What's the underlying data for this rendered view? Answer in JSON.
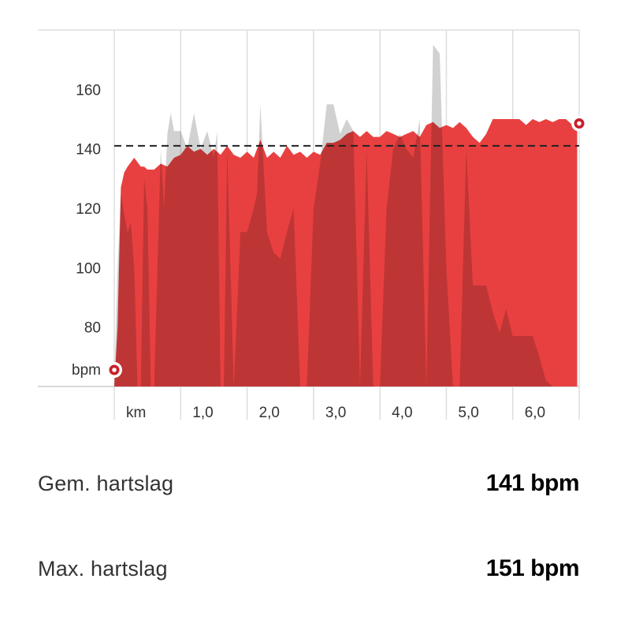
{
  "chart_data": {
    "type": "area",
    "xlabel": "km",
    "ylabel": "bpm",
    "xlim": [
      0,
      7.0
    ],
    "ylim": [
      60,
      180
    ],
    "x_ticks": [
      1,
      2,
      3,
      4,
      5,
      6
    ],
    "x_tick_labels": [
      "1,0",
      "2,0",
      "3,0",
      "4,0",
      "5,0",
      "6,0"
    ],
    "y_ticks": [
      80,
      100,
      120,
      140,
      160
    ],
    "y_tick_labels": [
      "80",
      "100",
      "120",
      "140",
      "160"
    ],
    "grid": "vertical",
    "average_line": 141,
    "series": [
      {
        "role": "heart-rate",
        "color": "#e84040",
        "x": [
          0,
          0.05,
          0.1,
          0.15,
          0.2,
          0.3,
          0.4,
          0.45,
          0.5,
          0.6,
          0.7,
          0.8,
          0.9,
          1.0,
          1.1,
          1.2,
          1.3,
          1.4,
          1.5,
          1.6,
          1.7,
          1.8,
          1.9,
          2.0,
          2.1,
          2.2,
          2.3,
          2.4,
          2.5,
          2.6,
          2.7,
          2.8,
          2.9,
          3.0,
          3.1,
          3.2,
          3.3,
          3.4,
          3.5,
          3.6,
          3.7,
          3.8,
          3.9,
          4.0,
          4.1,
          4.2,
          4.3,
          4.4,
          4.5,
          4.6,
          4.7,
          4.8,
          4.9,
          5.0,
          5.1,
          5.2,
          5.3,
          5.4,
          5.5,
          5.6,
          5.7,
          5.8,
          5.9,
          6.0,
          6.1,
          6.2,
          6.3,
          6.4,
          6.5,
          6.6,
          6.7,
          6.8,
          6.9,
          6.97
        ],
        "values": [
          60,
          80,
          127,
          132,
          134,
          137,
          134,
          134,
          133,
          133,
          135,
          134,
          137,
          138,
          141,
          139,
          140,
          138,
          140,
          138,
          141,
          138,
          137,
          139,
          137,
          143,
          137,
          139,
          137,
          141,
          138,
          139,
          137,
          139,
          138,
          142,
          142,
          143,
          145,
          146,
          144,
          146,
          144,
          144,
          146,
          145,
          144,
          145,
          146,
          144,
          148,
          149,
          147,
          148,
          147,
          149,
          147,
          144,
          142,
          145,
          150,
          150,
          150,
          150,
          150,
          148,
          150,
          149,
          150,
          149,
          150,
          150,
          148,
          148
        ]
      },
      {
        "role": "background",
        "color": "#bdbdbd",
        "x": [
          0,
          0.05,
          0.1,
          0.15,
          0.2,
          0.25,
          0.3,
          0.35,
          0.4,
          0.45,
          0.5,
          0.55,
          0.6,
          0.65,
          0.7,
          0.75,
          0.8,
          0.85,
          0.9,
          1.0,
          1.1,
          1.2,
          1.3,
          1.4,
          1.5,
          1.55,
          1.6,
          1.65,
          1.7,
          1.8,
          1.9,
          2.0,
          2.1,
          2.15,
          2.2,
          2.3,
          2.4,
          2.5,
          2.6,
          2.7,
          2.8,
          2.9,
          3.0,
          3.1,
          3.2,
          3.3,
          3.4,
          3.5,
          3.6,
          3.7,
          3.8,
          3.9,
          4.0,
          4.1,
          4.2,
          4.3,
          4.4,
          4.5,
          4.6,
          4.7,
          4.8,
          4.9,
          5.0,
          5.1,
          5.2,
          5.3,
          5.4,
          5.5,
          5.6,
          5.7,
          5.8,
          5.9,
          6.0,
          6.1,
          6.2,
          6.3,
          6.4,
          6.5,
          6.6,
          6.7,
          6.8,
          6.9,
          6.97
        ],
        "values": [
          60,
          100,
          125,
          118,
          112,
          115,
          100,
          60,
          60,
          130,
          120,
          60,
          60,
          100,
          140,
          120,
          145,
          152,
          146,
          146,
          140,
          152,
          140,
          146,
          137,
          146,
          60,
          60,
          140,
          60,
          112,
          112,
          120,
          125,
          155,
          112,
          105,
          103,
          112,
          120,
          60,
          60,
          120,
          135,
          155,
          155,
          145,
          150,
          146,
          60,
          140,
          60,
          60,
          120,
          140,
          145,
          140,
          137,
          150,
          60,
          175,
          172,
          100,
          60,
          60,
          140,
          94,
          94,
          94,
          85,
          78,
          86,
          77,
          77,
          77,
          77,
          70,
          62,
          60,
          60,
          60,
          60,
          60
        ]
      }
    ]
  },
  "stats": {
    "avg_label": "Gem. hartslag",
    "avg_value": "141 bpm",
    "max_label": "Max. hartslag",
    "max_value": "151 bpm"
  }
}
